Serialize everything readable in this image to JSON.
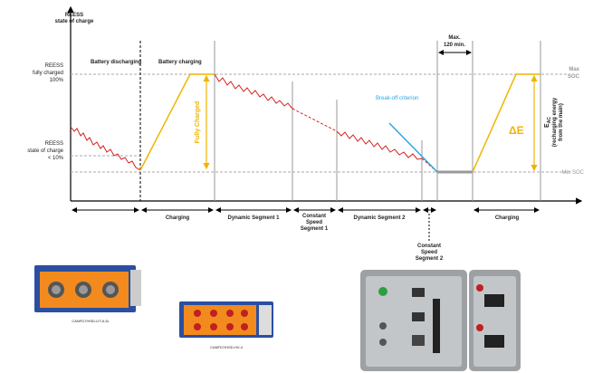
{
  "axis": {
    "y_label_1": "REESS",
    "y_label_2": "state of charge"
  },
  "levels": {
    "full": [
      "REESS",
      "fully charged",
      "100%"
    ],
    "low": [
      "REESS",
      "state of charge",
      "< 10%"
    ],
    "max_soc": [
      "Max",
      "SOC"
    ],
    "min_soc": "Min SOC"
  },
  "phase_labels": {
    "discharging": "Battery discharging",
    "charging": "Battery charging"
  },
  "annotations": {
    "fully_charged": "Fully Charged",
    "max_time": [
      "Max.",
      "120 min."
    ],
    "break_off": "Break-off criterion",
    "delta_e": "ΔE",
    "e_ac": {
      "symbol": "E",
      "subscript": "AC",
      "lines": [
        "(recharging energy",
        "from the main)"
      ]
    }
  },
  "segments": [
    {
      "label": [
        "Charging"
      ]
    },
    {
      "label": [
        "Dynamic Segment 1"
      ]
    },
    {
      "label": [
        "Constant",
        "Speed",
        "Segment 1"
      ]
    },
    {
      "label": [
        "Dynamic Segment 2"
      ]
    },
    {
      "label": [
        "Constant",
        "Speed",
        "Segment 2"
      ]
    },
    {
      "label": [
        "Charging"
      ]
    }
  ],
  "products": [
    {
      "caption": "CANFD7/HSD-UT-8-3L"
    },
    {
      "caption": "CANFD7/HSD-HV-4"
    }
  ]
}
